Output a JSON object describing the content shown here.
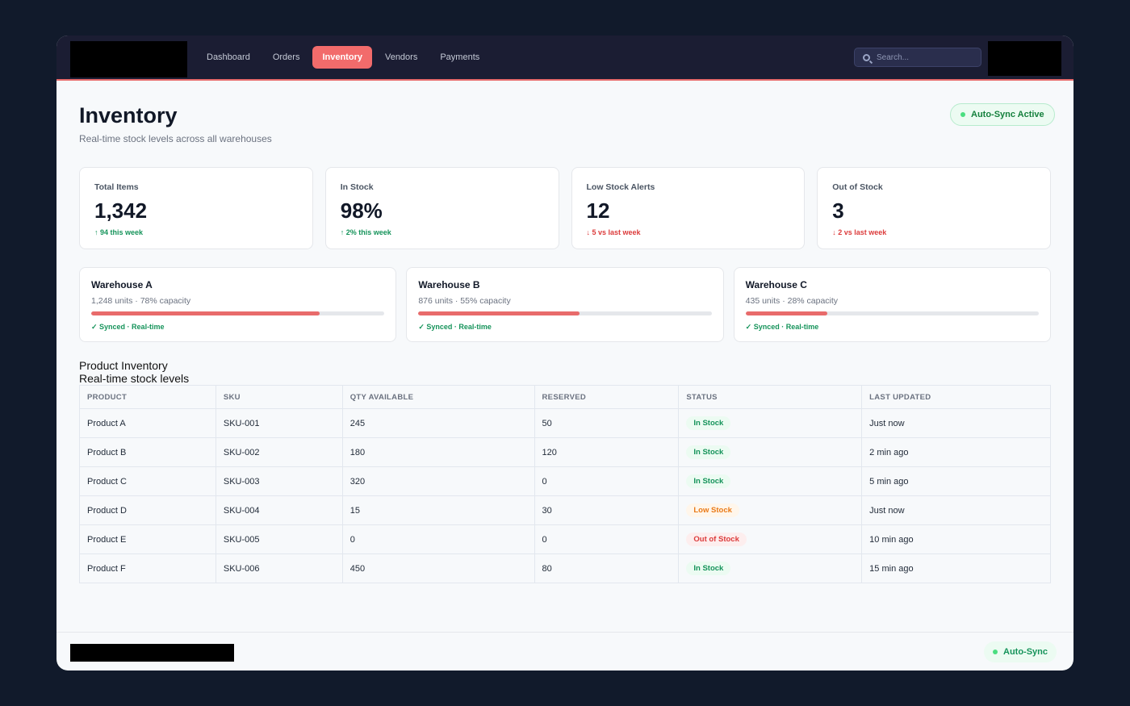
{
  "nav": {
    "items": [
      {
        "label": "Dashboard",
        "active": false
      },
      {
        "label": "Orders",
        "active": false
      },
      {
        "label": "Inventory",
        "active": true
      },
      {
        "label": "Vendors",
        "active": false
      },
      {
        "label": "Payments",
        "active": false
      }
    ],
    "search_placeholder": "Search..."
  },
  "header": {
    "title": "Inventory",
    "subtitle": "Real-time stock levels across all warehouses",
    "sync_status": "Auto-Sync Active"
  },
  "stats": [
    {
      "label": "Total Items",
      "value": "1,342",
      "trend": "↑ 94 this week",
      "direction": "up"
    },
    {
      "label": "In Stock",
      "value": "98%",
      "trend": "↑ 2% this week",
      "direction": "up"
    },
    {
      "label": "Low Stock Alerts",
      "value": "12",
      "trend": "↓ 5 vs last week",
      "direction": "down"
    },
    {
      "label": "Out of Stock",
      "value": "3",
      "trend": "↓ 2 vs last week",
      "direction": "down"
    }
  ],
  "warehouses": [
    {
      "name": "Warehouse A",
      "meta": "1,248 units · 78% capacity",
      "capacity": 78,
      "sync": "✓ Synced · Real-time"
    },
    {
      "name": "Warehouse B",
      "meta": "876 units · 55% capacity",
      "capacity": 55,
      "sync": "✓ Synced · Real-time"
    },
    {
      "name": "Warehouse C",
      "meta": "435 units · 28% capacity",
      "capacity": 28,
      "sync": "✓ Synced · Real-time"
    }
  ],
  "table": {
    "title": "Product Inventory",
    "subtitle": "Real-time stock levels",
    "columns": [
      "PRODUCT",
      "SKU",
      "QTY AVAILABLE",
      "RESERVED",
      "STATUS",
      "LAST UPDATED"
    ],
    "rows": [
      {
        "product": "Product A",
        "sku": "SKU-001",
        "qty": "245",
        "reserved": "50",
        "status": "In Stock",
        "status_type": "in",
        "updated": "Just now"
      },
      {
        "product": "Product B",
        "sku": "SKU-002",
        "qty": "180",
        "reserved": "120",
        "status": "In Stock",
        "status_type": "in",
        "updated": "2 min ago"
      },
      {
        "product": "Product C",
        "sku": "SKU-003",
        "qty": "320",
        "reserved": "0",
        "status": "In Stock",
        "status_type": "in",
        "updated": "5 min ago"
      },
      {
        "product": "Product D",
        "sku": "SKU-004",
        "qty": "15",
        "reserved": "30",
        "status": "Low Stock",
        "status_type": "low",
        "updated": "Just now"
      },
      {
        "product": "Product E",
        "sku": "SKU-005",
        "qty": "0",
        "reserved": "0",
        "status": "Out of Stock",
        "status_type": "out",
        "updated": "10 min ago"
      },
      {
        "product": "Product F",
        "sku": "SKU-006",
        "qty": "450",
        "reserved": "80",
        "status": "In Stock",
        "status_type": "in",
        "updated": "15 min ago"
      }
    ]
  },
  "footer": {
    "sync_label": "Auto-Sync"
  },
  "colors": {
    "accent": "#f26b6b",
    "nav_bg": "#1b1d33",
    "page_bg": "#111a2b",
    "success": "#15935a",
    "warning": "#ea7a17",
    "danger": "#dc3b3b"
  }
}
